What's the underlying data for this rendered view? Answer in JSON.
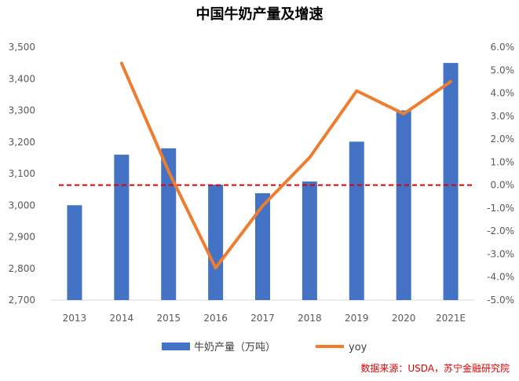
{
  "chart_data": {
    "type": "bar",
    "title": "中国牛奶产量及增速",
    "categories": [
      "2013",
      "2014",
      "2015",
      "2016",
      "2017",
      "2018",
      "2019",
      "2020",
      "2021E"
    ],
    "series": [
      {
        "name": "牛奶产量（万吨）",
        "type": "bar",
        "axis": "left",
        "color": "#4472C4",
        "values": [
          3000,
          3160,
          3180,
          3065,
          3038,
          3075,
          3201,
          3300,
          3450
        ]
      },
      {
        "name": "yoy",
        "type": "line",
        "axis": "right",
        "color": "#ED7D31",
        "values": [
          null,
          5.3,
          0.6,
          -3.6,
          -0.9,
          1.2,
          4.1,
          3.1,
          4.5
        ]
      }
    ],
    "left_axis": {
      "ylim": [
        2700,
        3500
      ],
      "ticks": [
        "2,700",
        "2,800",
        "2,900",
        "3,000",
        "3,100",
        "3,200",
        "3,300",
        "3,400",
        "3,500"
      ],
      "tick_values": [
        2700,
        2800,
        2900,
        3000,
        3100,
        3200,
        3300,
        3400,
        3500
      ]
    },
    "right_axis": {
      "ylim": [
        -5,
        6
      ],
      "ticks": [
        "-5.0%",
        "-4.0%",
        "-3.0%",
        "-2.0%",
        "-1.0%",
        "0.0%",
        "1.0%",
        "2.0%",
        "3.0%",
        "4.0%",
        "5.0%",
        "6.0%"
      ],
      "tick_values": [
        -5,
        -4,
        -3,
        -2,
        -1,
        0,
        1,
        2,
        3,
        4,
        5,
        6
      ]
    },
    "reference_line": {
      "axis": "right",
      "value": 0,
      "style": "dashed",
      "color": "#E00000"
    },
    "grid": false,
    "legend_position": "bottom"
  },
  "source": "数据来源：USDA，苏宁金融研究院"
}
